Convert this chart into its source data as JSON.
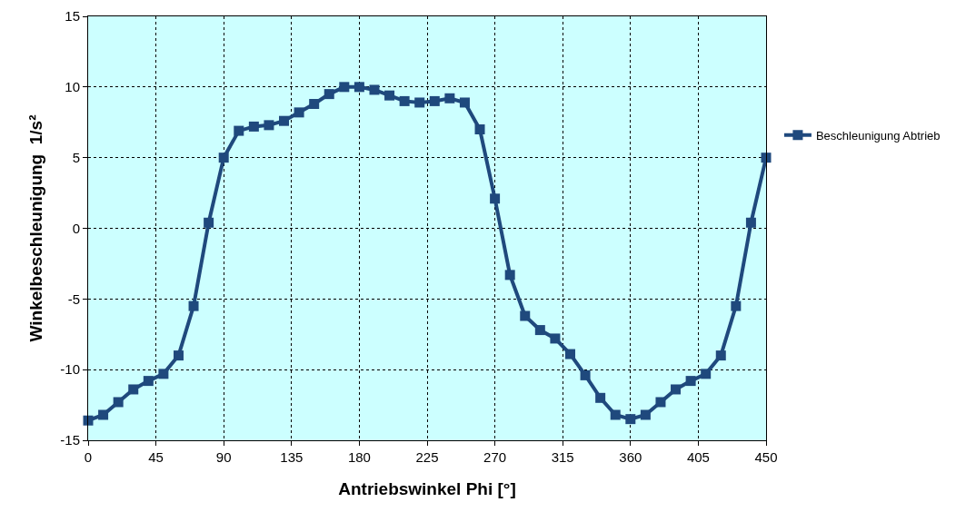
{
  "chart_data": {
    "type": "line",
    "xlabel": "Antriebswinkel Phi [°]",
    "ylabel": "Winkelbeschleunigung  1/s²",
    "x": [
      0,
      10,
      20,
      30,
      40,
      50,
      60,
      70,
      80,
      90,
      100,
      110,
      120,
      130,
      140,
      150,
      160,
      170,
      180,
      190,
      200,
      210,
      220,
      230,
      240,
      250,
      260,
      270,
      280,
      290,
      300,
      310,
      320,
      330,
      340,
      350,
      360,
      370,
      380,
      390,
      400,
      410,
      420,
      430,
      440,
      450
    ],
    "series": [
      {
        "name": "Beschleunigung Abtrieb",
        "color": "#1f497d",
        "values": [
          -13.6,
          -13.2,
          -12.3,
          -11.4,
          -10.8,
          -10.3,
          -9.0,
          -5.5,
          0.4,
          5.0,
          6.9,
          7.2,
          7.3,
          7.6,
          8.2,
          8.8,
          9.5,
          10.0,
          10.0,
          9.8,
          9.4,
          9.0,
          8.9,
          9.0,
          9.2,
          8.9,
          7.0,
          2.1,
          -3.3,
          -6.2,
          -7.2,
          -7.8,
          -8.9,
          -10.4,
          -12.0,
          -13.2,
          -13.5,
          -13.2,
          -12.3,
          -11.4,
          -10.8,
          -10.3,
          -9.0,
          -5.5,
          0.4,
          5.0
        ]
      }
    ],
    "xlim": [
      0,
      450
    ],
    "xticks": [
      0,
      45,
      90,
      135,
      180,
      225,
      270,
      315,
      360,
      405,
      450
    ],
    "ylim": [
      -15,
      15
    ],
    "yticks": [
      -15,
      -10,
      -5,
      0,
      5,
      10,
      15
    ],
    "grid": true,
    "legend": "right",
    "marker": "square",
    "line_style": "solid"
  }
}
